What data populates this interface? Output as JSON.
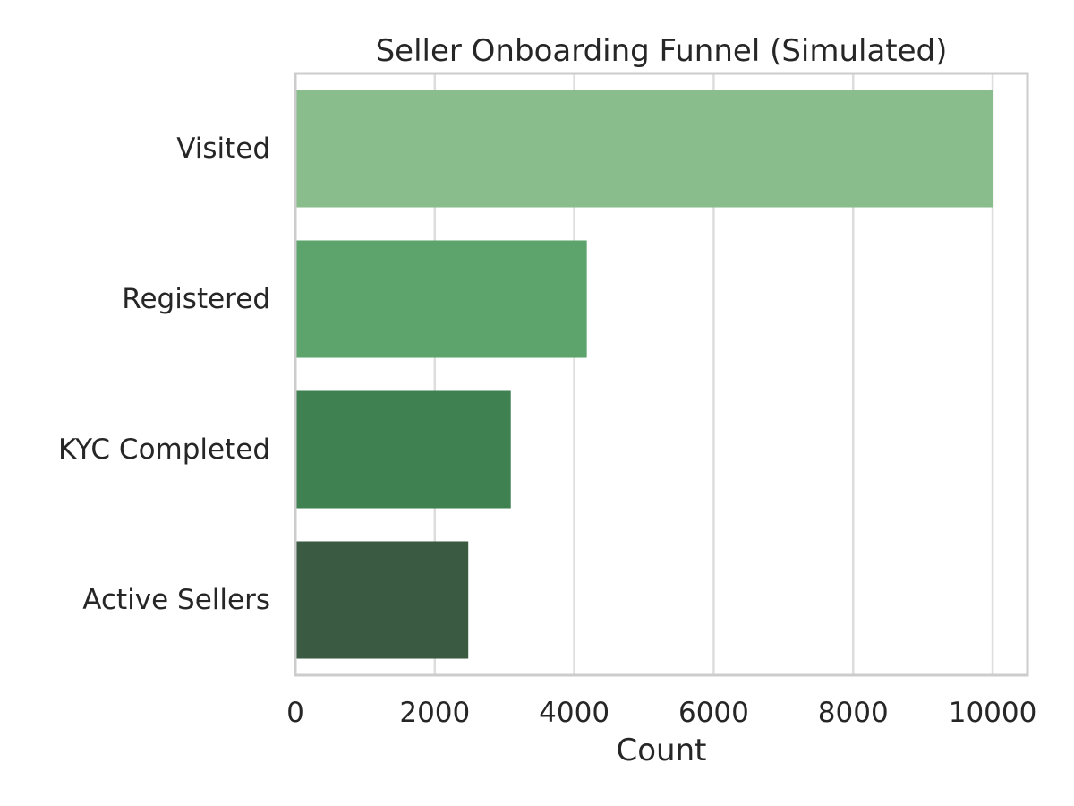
{
  "chart_data": {
    "type": "bar",
    "orientation": "horizontal",
    "title": "Seller Onboarding Funnel (Simulated)",
    "xlabel": "Count",
    "ylabel": "",
    "categories": [
      "Visited",
      "Registered",
      "KYC Completed",
      "Active Sellers"
    ],
    "values": [
      10000,
      4180,
      3090,
      2480
    ],
    "colors": [
      "#8abd8c",
      "#5ca36c",
      "#408152",
      "#3b5a42"
    ],
    "xlim": [
      0,
      10500
    ],
    "xticks": [
      0,
      2000,
      4000,
      6000,
      8000,
      10000
    ],
    "xtick_labels": [
      "0",
      "2000",
      "4000",
      "6000",
      "8000",
      "10000"
    ],
    "grid": "x-major",
    "legend": "none"
  }
}
